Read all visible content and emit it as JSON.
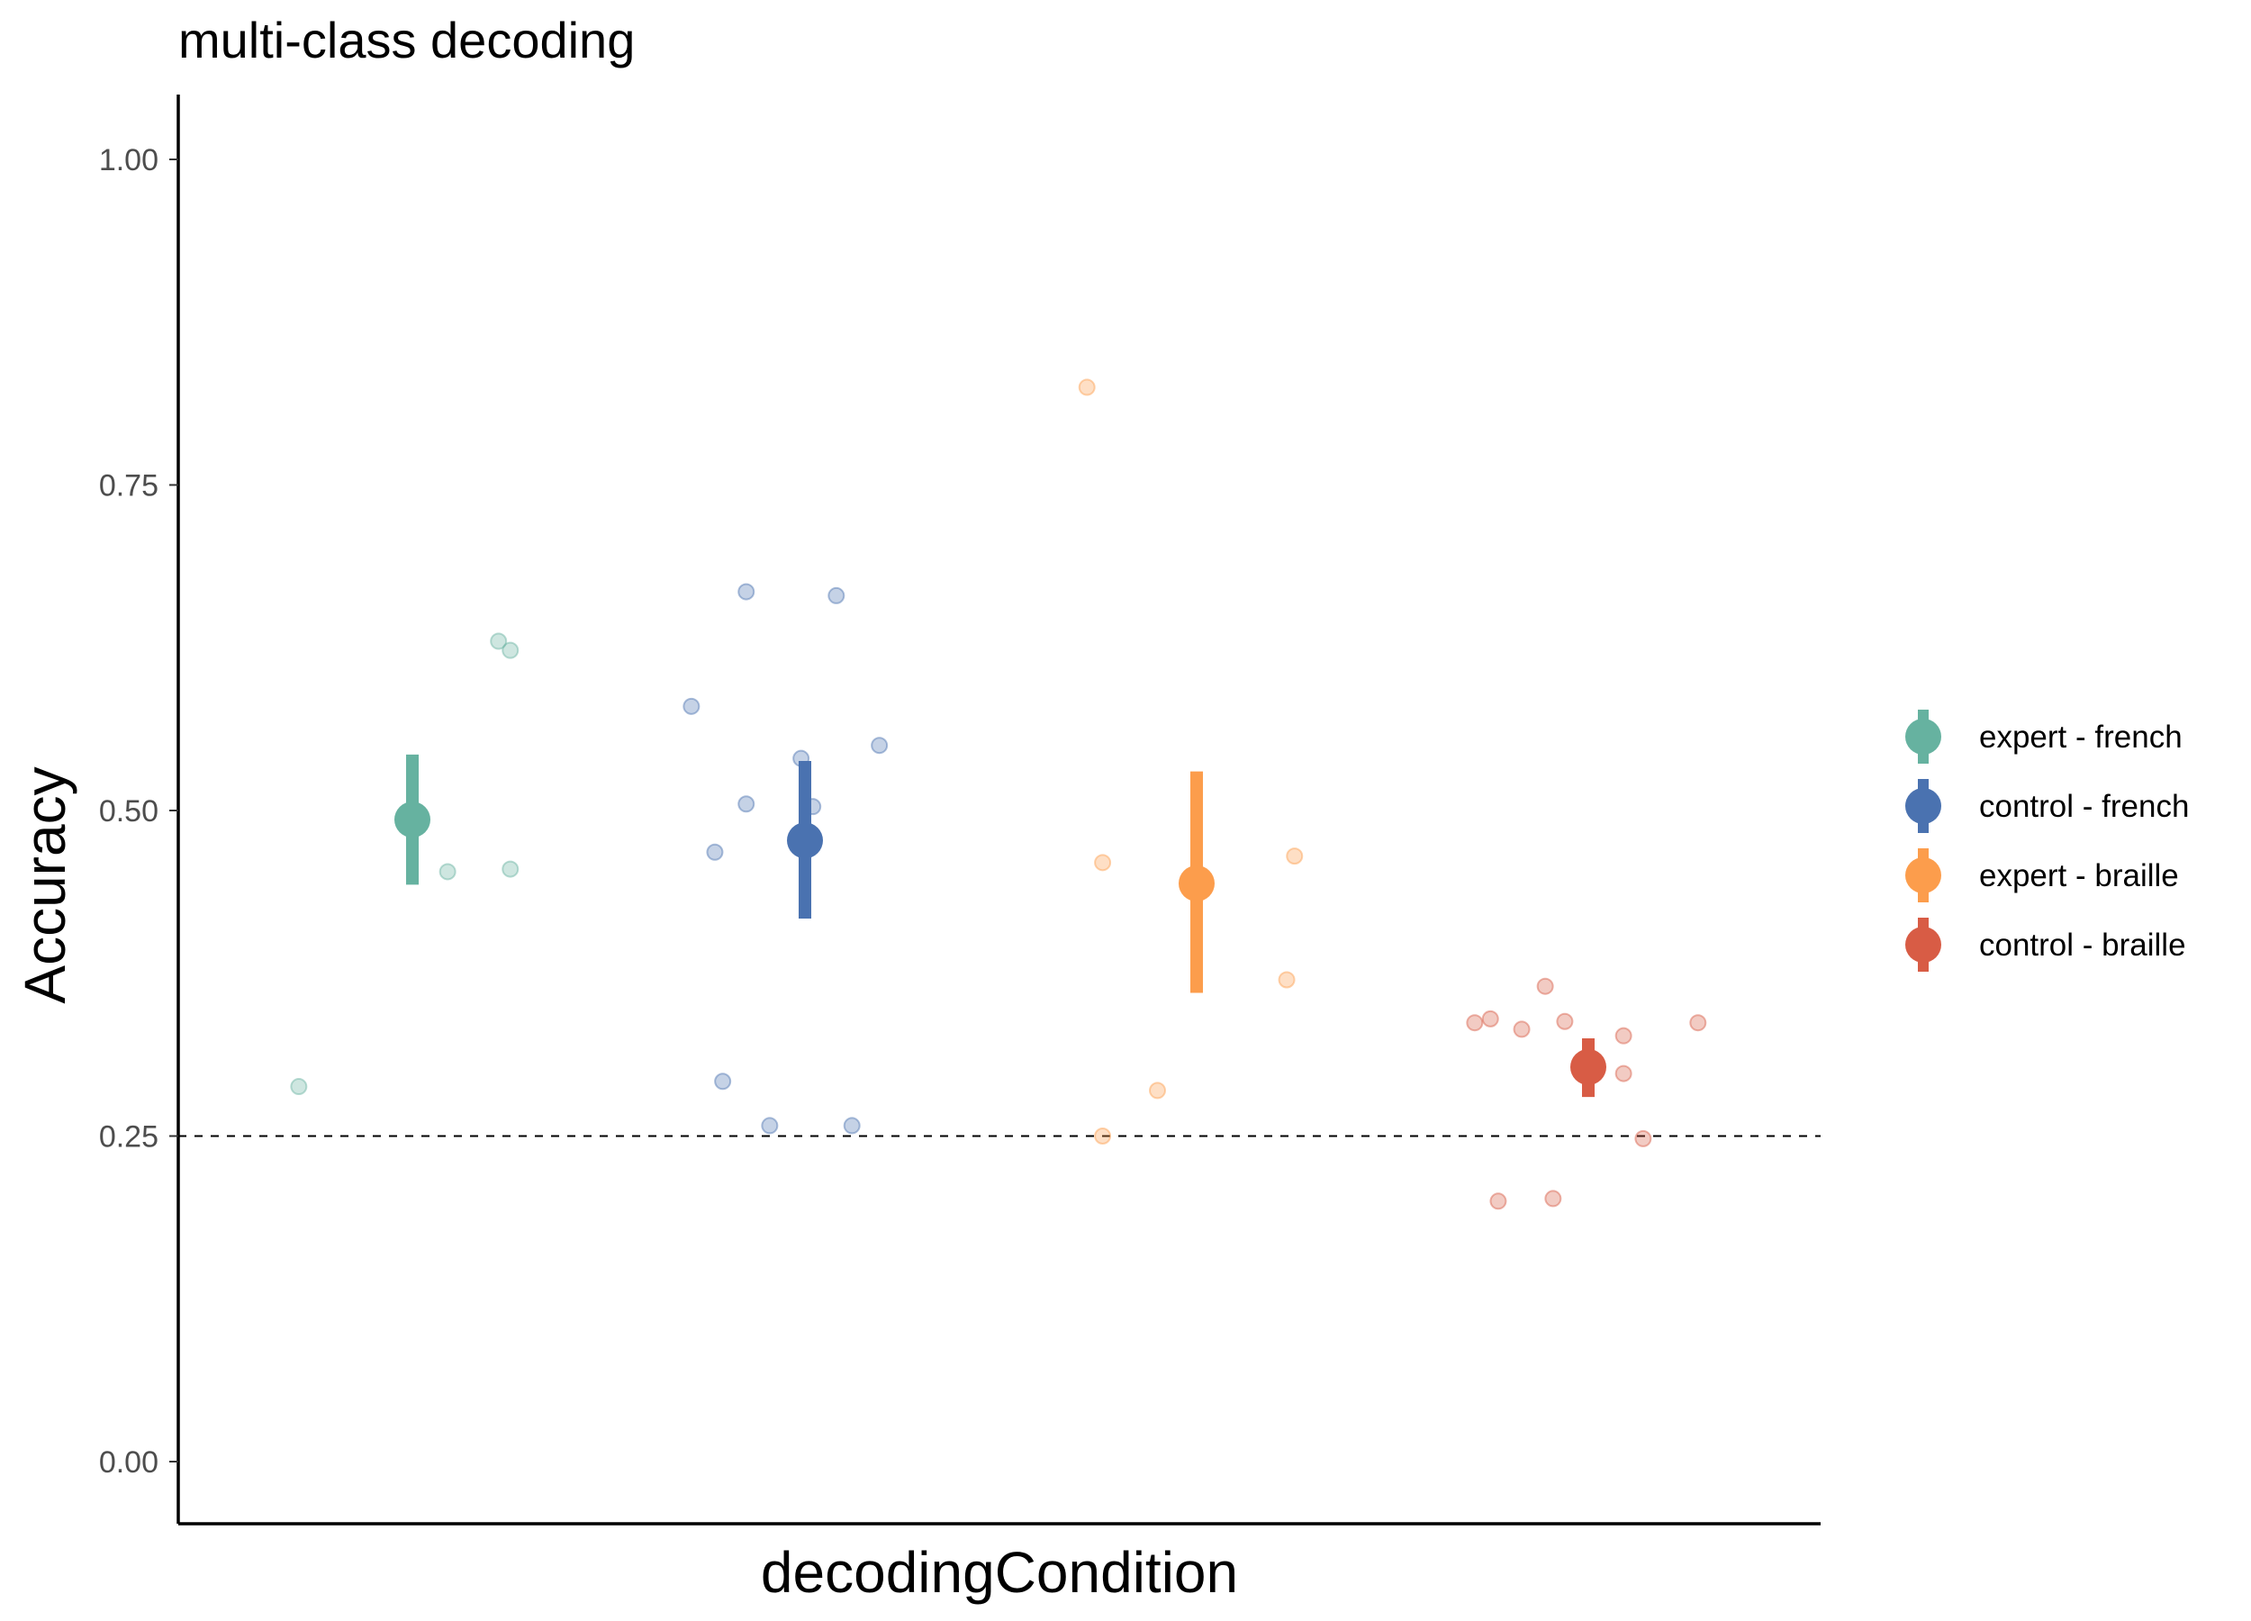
{
  "chart_data": {
    "type": "scatter",
    "title": "multi-class decoding",
    "xlabel": "decodingCondition",
    "ylabel": "Accuracy",
    "ylim": [
      -0.04,
      1.04
    ],
    "yticks": [
      "0.00",
      "0.25",
      "0.50",
      "0.75",
      "1.00"
    ],
    "ytick_values": [
      0,
      0.25,
      0.5,
      0.75,
      1.0
    ],
    "reference_line": {
      "y": 0.25,
      "style": "dashed"
    },
    "grid": false,
    "legend_position": "right",
    "series": [
      {
        "name": "expert - french",
        "color": "#66b2a0",
        "mean": 0.493,
        "error_bar": [
          0.443,
          0.543
        ],
        "points": [
          {
            "x": -0.29,
            "y": 0.288
          },
          {
            "x": 0.09,
            "y": 0.453
          },
          {
            "x": 0.22,
            "y": 0.63
          },
          {
            "x": 0.25,
            "y": 0.623
          },
          {
            "x": 0.25,
            "y": 0.455
          }
        ]
      },
      {
        "name": "control - french",
        "color": "#4a72b0",
        "mean": 0.477,
        "error_bar": [
          0.417,
          0.538
        ],
        "points": [
          {
            "x": -0.29,
            "y": 0.58
          },
          {
            "x": -0.23,
            "y": 0.468
          },
          {
            "x": -0.21,
            "y": 0.292
          },
          {
            "x": -0.15,
            "y": 0.668
          },
          {
            "x": -0.15,
            "y": 0.505
          },
          {
            "x": -0.09,
            "y": 0.258
          },
          {
            "x": -0.01,
            "y": 0.54
          },
          {
            "x": 0.02,
            "y": 0.503
          },
          {
            "x": 0.08,
            "y": 0.665
          },
          {
            "x": 0.12,
            "y": 0.258
          },
          {
            "x": 0.19,
            "y": 0.55
          }
        ]
      },
      {
        "name": "expert - braille",
        "color": "#fc9d4c",
        "mean": 0.444,
        "error_bar": [
          0.36,
          0.53
        ],
        "points": [
          {
            "x": -0.28,
            "y": 0.825
          },
          {
            "x": -0.24,
            "y": 0.46
          },
          {
            "x": -0.24,
            "y": 0.25
          },
          {
            "x": -0.1,
            "y": 0.285
          },
          {
            "x": 0.23,
            "y": 0.37
          },
          {
            "x": 0.25,
            "y": 0.465
          }
        ]
      },
      {
        "name": "control - braille",
        "color": "#d85c45",
        "mean": 0.303,
        "error_bar": [
          0.28,
          0.325
        ],
        "points": [
          {
            "x": -0.29,
            "y": 0.337
          },
          {
            "x": -0.25,
            "y": 0.34
          },
          {
            "x": -0.23,
            "y": 0.2
          },
          {
            "x": -0.17,
            "y": 0.332
          },
          {
            "x": -0.11,
            "y": 0.365
          },
          {
            "x": -0.09,
            "y": 0.202
          },
          {
            "x": -0.06,
            "y": 0.338
          },
          {
            "x": 0.09,
            "y": 0.327
          },
          {
            "x": 0.09,
            "y": 0.298
          },
          {
            "x": 0.14,
            "y": 0.248
          },
          {
            "x": 0.28,
            "y": 0.337
          }
        ]
      }
    ]
  }
}
